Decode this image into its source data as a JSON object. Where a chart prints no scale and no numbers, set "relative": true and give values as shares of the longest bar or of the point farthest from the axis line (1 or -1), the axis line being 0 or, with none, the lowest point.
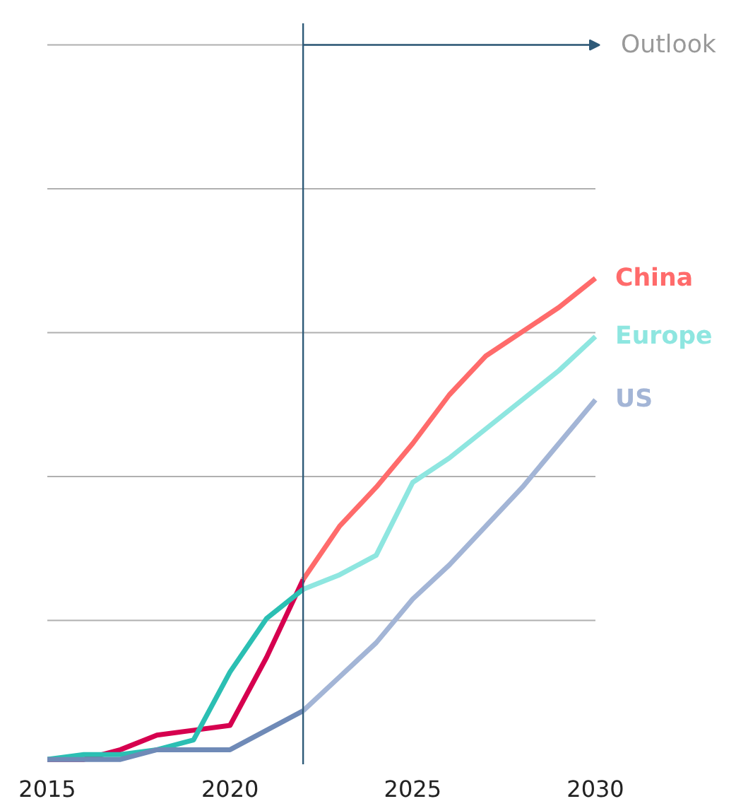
{
  "chart_data": {
    "type": "line",
    "relative": true,
    "xlim": [
      2015,
      2030
    ],
    "xticks": [
      2015,
      2020,
      2025,
      2030
    ],
    "grid": "y",
    "marker": "none",
    "line_style": "solid",
    "ref_lines": [
      {
        "axis": "x",
        "value": 2022,
        "label": "Outlook",
        "color": "#2e5a78"
      }
    ],
    "series": [
      {
        "color": "#d6004f",
        "x": [
          2015,
          2016,
          2017,
          2018,
          2019,
          2020,
          2021,
          2022
        ],
        "values": [
          0.01,
          0.01,
          0.03,
          0.06,
          0.07,
          0.08,
          0.22,
          0.38
        ]
      },
      {
        "name": "China",
        "color": "#ff6b6b",
        "x": [
          2022,
          2023,
          2024,
          2025,
          2026,
          2027,
          2028,
          2029,
          2030
        ],
        "values": [
          0.38,
          0.49,
          0.57,
          0.66,
          0.76,
          0.84,
          0.89,
          0.94,
          1
        ]
      },
      {
        "color": "#2bbfb3",
        "x": [
          2015,
          2016,
          2017,
          2018,
          2019,
          2020,
          2021,
          2022
        ],
        "values": [
          0.01,
          0.02,
          0.02,
          0.03,
          0.05,
          0.19,
          0.3,
          0.36
        ]
      },
      {
        "name": "Europe",
        "color": "#8ee6e0",
        "x": [
          2022,
          2023,
          2024,
          2025,
          2026,
          2027,
          2028,
          2029,
          2030
        ],
        "values": [
          0.36,
          0.39,
          0.43,
          0.58,
          0.63,
          0.69,
          0.75,
          0.81,
          0.88
        ]
      },
      {
        "color": "#6f8ab7",
        "x": [
          2015,
          2016,
          2017,
          2018,
          2019,
          2020,
          2021,
          2022
        ],
        "values": [
          0.01,
          0.01,
          0.01,
          0.03,
          0.03,
          0.03,
          0.07,
          0.11
        ]
      },
      {
        "name": "US",
        "color": "#a3b5d6",
        "x": [
          2022,
          2023,
          2024,
          2025,
          2026,
          2027,
          2028,
          2029,
          2030
        ],
        "values": [
          0.11,
          0.18,
          0.25,
          0.34,
          0.41,
          0.49,
          0.57,
          0.66,
          0.75
        ]
      }
    ]
  }
}
